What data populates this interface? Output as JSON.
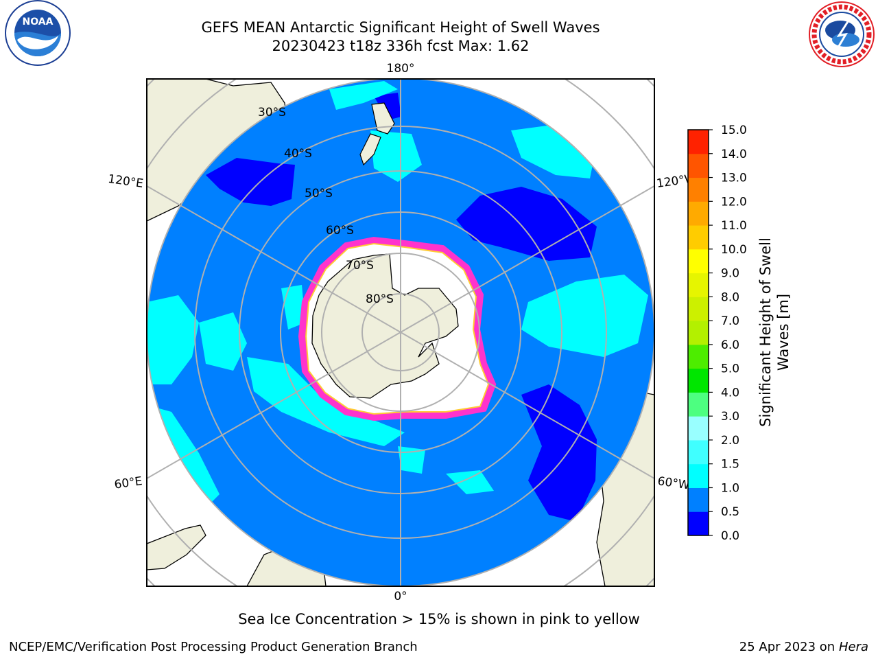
{
  "header": {
    "title_line1": "GEFS MEAN Antarctic Significant Height of Swell Waves",
    "title_line2": "20230423 t18z 336h fcst   Max: 1.62"
  },
  "logos": {
    "noaa": {
      "text": "NOAA",
      "ring_text": "NATIONAL OCEANIC AND ATMOSPHERIC ADMINISTRATION · U.S. DEPARTMENT OF COMMERCE"
    },
    "nws": {
      "ring_text": "NATIONAL WEATHER SERVICE"
    }
  },
  "map": {
    "projection": "south-polar-stereographic",
    "longitude_labels": {
      "top": "180°",
      "bottom": "0°",
      "upper_left": "120°E",
      "upper_right": "120°W",
      "lower_left": "60°E",
      "lower_right": "60°W"
    },
    "latitude_labels": [
      "30°S",
      "40°S",
      "50°S",
      "60°S",
      "70°S",
      "80°S"
    ],
    "colors": {
      "land": "#efefdc",
      "ocean_0_5_1_0": "#0080ff",
      "ocean_0_0_5": "#0000ff",
      "ocean_1_0_1_5": "#00ffff",
      "sea_ice_edge": "#ff33cc",
      "sea_ice_yellow": "#ffcc33",
      "gridline": "#b0b0b0"
    }
  },
  "colorbar": {
    "label": "Significant Height of Swell Waves [m]",
    "label_line1": "Significant Height of Swell",
    "label_line2": "Waves [m]",
    "ticks": [
      "0.0",
      "0.5",
      "1.0",
      "1.5",
      "2.0",
      "3.0",
      "4.0",
      "5.0",
      "6.0",
      "7.0",
      "8.0",
      "9.0",
      "10.0",
      "11.0",
      "12.0",
      "13.0",
      "14.0",
      "15.0"
    ],
    "colors": [
      "#0000ff",
      "#0080ff",
      "#00ffff",
      "#40ffff",
      "#99ffff",
      "#4dff80",
      "#00e600",
      "#4ded00",
      "#b3f000",
      "#ccf000",
      "#e6f500",
      "#ffff00",
      "#ffcc00",
      "#ffaa00",
      "#ff8000",
      "#ff5500",
      "#ff2200"
    ]
  },
  "sea_ice_note": "Sea Ice Concentration > 15% is shown in pink to yellow",
  "footer": {
    "left": "NCEP/EMC/Verification Post Processing Product Generation Branch",
    "right_prefix": "25 Apr 2023 on ",
    "right_machine": "Hera"
  }
}
